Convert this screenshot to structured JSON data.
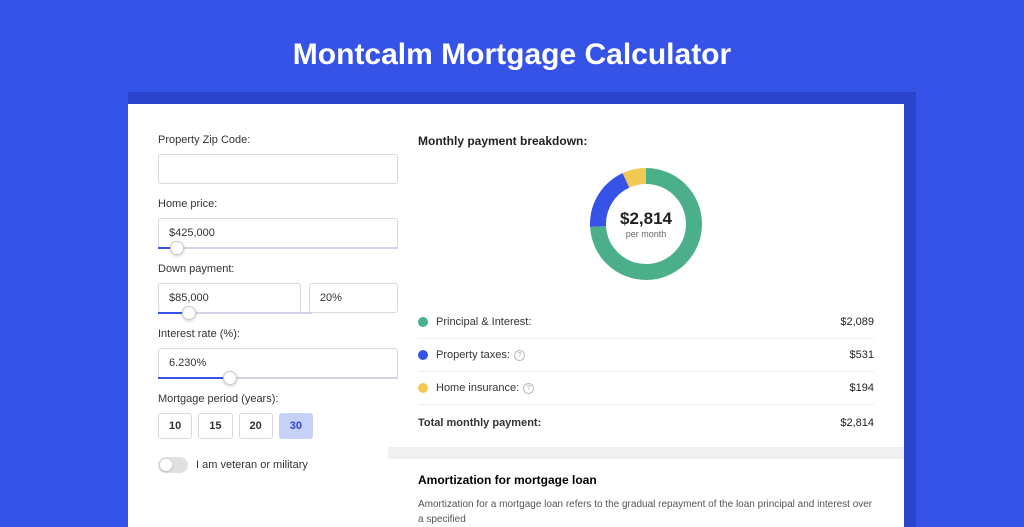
{
  "header": {
    "title": "Montcalm Mortgage Calculator"
  },
  "colors": {
    "page_bg": "#3653e8",
    "shadow_bg": "#2a45cc",
    "card_bg": "#ffffff",
    "principal": "#4bb08a",
    "taxes": "#3653e8",
    "insurance": "#f2c955",
    "border": "#d9d9d9"
  },
  "form": {
    "zip": {
      "label": "Property Zip Code:",
      "value": ""
    },
    "home_price": {
      "label": "Home price:",
      "value": "$425,000",
      "slider_pct": 8
    },
    "down_payment": {
      "label": "Down payment:",
      "amount": "$85,000",
      "pct": "20%",
      "slider_pct": 20
    },
    "interest": {
      "label": "Interest rate (%):",
      "value": "6.230%",
      "slider_pct": 30
    },
    "period": {
      "label": "Mortgage period (years):",
      "options": [
        "10",
        "15",
        "20",
        "30"
      ],
      "selected": "30"
    },
    "veteran": {
      "label": "I am veteran or military",
      "on": false
    }
  },
  "breakdown": {
    "title": "Monthly payment breakdown:",
    "center_amount": "$2,814",
    "center_sub": "per month",
    "items": [
      {
        "key": "principal",
        "label": "Principal & Interest:",
        "value": "$2,089",
        "color": "#4bb08a",
        "pct": 74,
        "help": false
      },
      {
        "key": "taxes",
        "label": "Property taxes:",
        "value": "$531",
        "color": "#3653e8",
        "pct": 19,
        "help": true
      },
      {
        "key": "insurance",
        "label": "Home insurance:",
        "value": "$194",
        "color": "#f2c955",
        "pct": 7,
        "help": true
      }
    ],
    "total": {
      "label": "Total monthly payment:",
      "value": "$2,814"
    },
    "donut": {
      "circumference": 301.6,
      "stroke_width": 16,
      "radius": 48
    }
  },
  "amortization": {
    "title": "Amortization for mortgage loan",
    "text": "Amortization for a mortgage loan refers to the gradual repayment of the loan principal and interest over a specified"
  }
}
